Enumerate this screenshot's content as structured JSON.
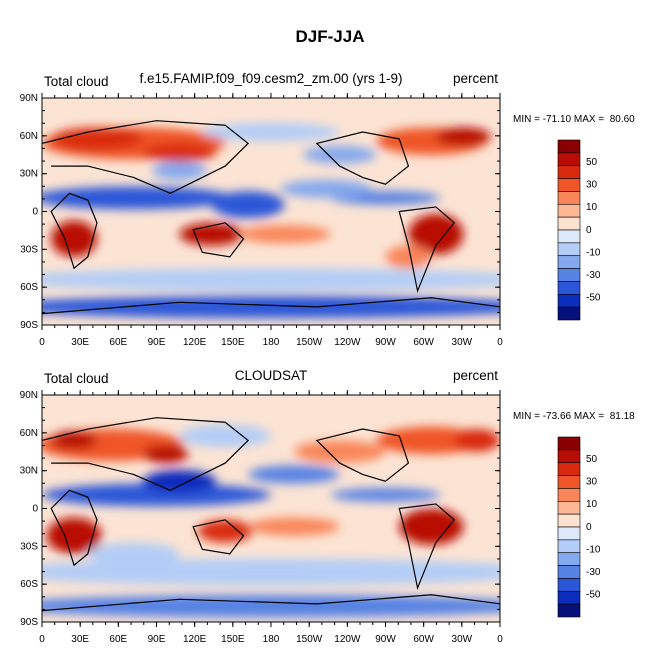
{
  "title": "DJF-JJA",
  "panels": [
    {
      "left": "Total cloud",
      "center": "f.e15.FAMIP.f09_f09.cesm2_zm.00 (yrs 1-9)",
      "right": "percent",
      "stats": "MIN = -71.10 MAX =  80.60"
    },
    {
      "left": "Total cloud",
      "center": "CLOUDSAT",
      "right": "percent",
      "stats": "MIN = -73.66 MAX =  81.18"
    }
  ],
  "lat_labels": [
    "90N",
    "60N",
    "30N",
    "0",
    "30S",
    "60S",
    "90S"
  ],
  "lon_labels": [
    "0",
    "30E",
    "60E",
    "90E",
    "120E",
    "150E",
    "180",
    "150W",
    "120W",
    "90W",
    "60W",
    "30W",
    "0"
  ],
  "colorbar_labels": [
    "50",
    "30",
    "10",
    "0",
    "-10",
    "-30",
    "-50"
  ]
}
